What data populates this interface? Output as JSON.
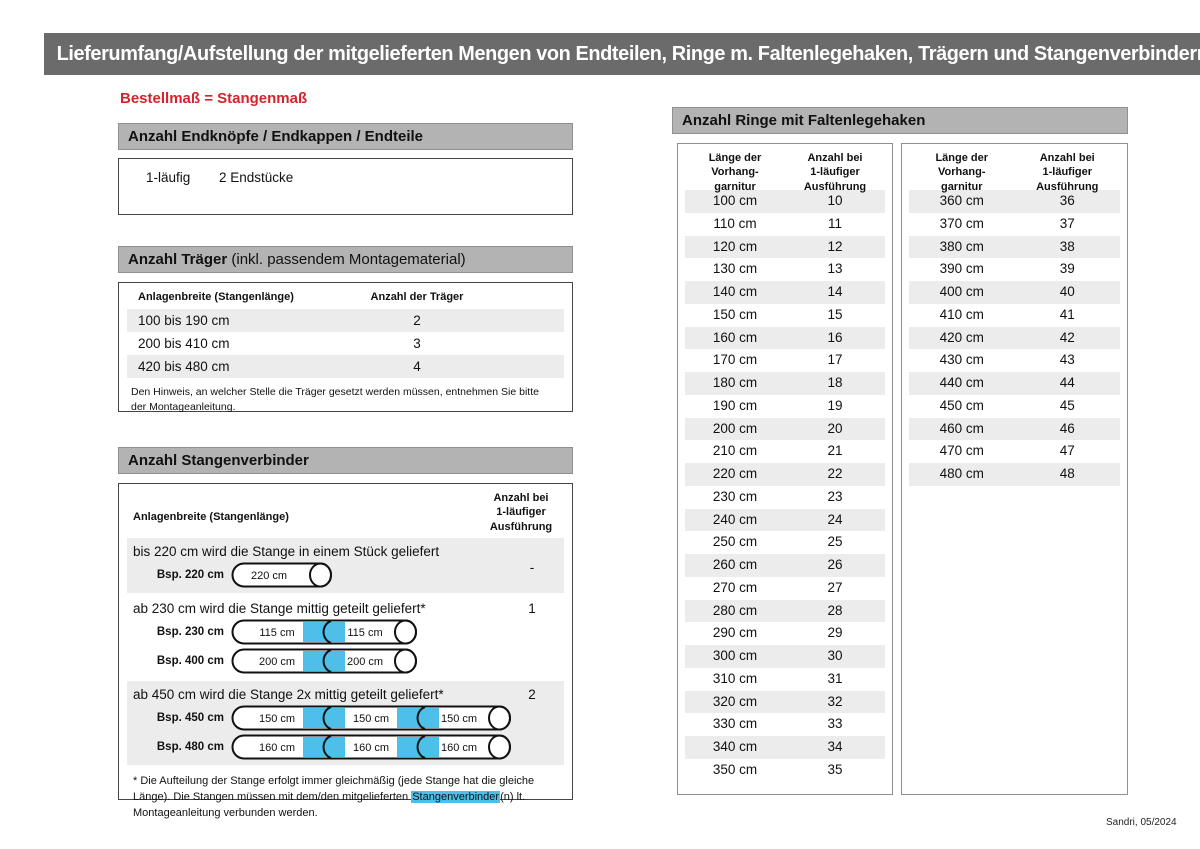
{
  "page": {
    "title_bar": "Lieferumfang/Aufstellung der mitgelieferten Mengen von Endteilen, Ringe m. Faltenlegehaken, Trägern und Stangenverbindern:",
    "subtitle": "Bestellmaß = Stangenmaß",
    "footer": "Sandri, 05/2024"
  },
  "colors": {
    "title_bar_gray": "#6b6b6b",
    "section_header_gray": "#b3b3b3",
    "row_stripe_gray": "#ececec",
    "accent_red": "#d6232b",
    "connector_blue": "#4dbfe9"
  },
  "endteile": {
    "header": "Anzahl Endknöpfe / Endkappen / Endteile",
    "row": {
      "type": "1-läufig",
      "value": "2 Endstücke"
    }
  },
  "traeger": {
    "header_bold": "Anzahl Träger",
    "header_rest": " (inkl. passendem Montagematerial)",
    "col1": "Anlagenbreite (Stangenlänge)",
    "col2": "Anzahl der Träger",
    "rows": [
      [
        "100 bis 190 cm",
        "2"
      ],
      [
        "200 bis 410 cm",
        "3"
      ],
      [
        "420 bis 480 cm",
        "4"
      ]
    ],
    "note": "Den Hinweis, an welcher Stelle die Träger gesetzt werden müssen, entnehmen Sie bitte der Montageanleitung."
  },
  "verbinder": {
    "header": "Anzahl Stangenverbinder",
    "col1": "Anlagenbreite (Stangenlänge)",
    "col2": "Anzahl bei 1-läufiger Ausführung",
    "groups": [
      {
        "text": "bis 220 cm wird die Stange in einem Stück geliefert",
        "value": "-",
        "rods": [
          {
            "label": "Bsp. 220 cm",
            "sections": [
              "220 cm"
            ]
          }
        ]
      },
      {
        "text": "ab 230 cm wird die Stange mittig geteilt geliefert*",
        "value": "1",
        "rods": [
          {
            "label": "Bsp. 230 cm",
            "sections": [
              "115 cm",
              "115 cm"
            ]
          },
          {
            "label": "Bsp. 400 cm",
            "sections": [
              "200 cm",
              "200 cm"
            ]
          }
        ]
      },
      {
        "text": "ab 450 cm wird die Stange 2x mittig geteilt geliefert*",
        "value": "2",
        "rods": [
          {
            "label": "Bsp. 450 cm",
            "sections": [
              "150 cm",
              "150 cm",
              "150 cm"
            ]
          },
          {
            "label": "Bsp. 480 cm",
            "sections": [
              "160 cm",
              "160 cm",
              "160 cm"
            ]
          }
        ]
      }
    ],
    "footnote_pre": "* Die Aufteilung der Stange erfolgt immer gleichmäßig (jede Stange hat die gleiche Länge). Die Stangen müssen mit dem/den mitgelieferten ",
    "footnote_highlight": "Stangenverbinder",
    "footnote_post": "(n) lt. Montageanleitung verbunden werden."
  },
  "ringe": {
    "header": "Anzahl Ringe mit Faltenlegehaken",
    "col1": "Länge der Vorhang- garnitur",
    "col2": "Anzahl bei 1-läufiger Ausführung",
    "col1_lines": [
      "Länge der",
      "Vorhang-",
      "garnitur"
    ],
    "col2_lines": [
      "Anzahl bei",
      "1-läufiger",
      "Ausführung"
    ],
    "table_left": [
      [
        "100 cm",
        "10"
      ],
      [
        "110 cm",
        "11"
      ],
      [
        "120 cm",
        "12"
      ],
      [
        "130 cm",
        "13"
      ],
      [
        "140 cm",
        "14"
      ],
      [
        "150 cm",
        "15"
      ],
      [
        "160 cm",
        "16"
      ],
      [
        "170 cm",
        "17"
      ],
      [
        "180 cm",
        "18"
      ],
      [
        "190 cm",
        "19"
      ],
      [
        "200 cm",
        "20"
      ],
      [
        "210 cm",
        "21"
      ],
      [
        "220 cm",
        "22"
      ],
      [
        "230 cm",
        "23"
      ],
      [
        "240 cm",
        "24"
      ],
      [
        "250 cm",
        "25"
      ],
      [
        "260 cm",
        "26"
      ],
      [
        "270 cm",
        "27"
      ],
      [
        "280 cm",
        "28"
      ],
      [
        "290 cm",
        "29"
      ],
      [
        "300 cm",
        "30"
      ],
      [
        "310 cm",
        "31"
      ],
      [
        "320 cm",
        "32"
      ],
      [
        "330 cm",
        "33"
      ],
      [
        "340 cm",
        "34"
      ],
      [
        "350 cm",
        "35"
      ]
    ],
    "table_right": [
      [
        "360 cm",
        "36"
      ],
      [
        "370 cm",
        "37"
      ],
      [
        "380 cm",
        "38"
      ],
      [
        "390 cm",
        "39"
      ],
      [
        "400 cm",
        "40"
      ],
      [
        "410 cm",
        "41"
      ],
      [
        "420 cm",
        "42"
      ],
      [
        "430 cm",
        "43"
      ],
      [
        "440 cm",
        "44"
      ],
      [
        "450 cm",
        "45"
      ],
      [
        "460 cm",
        "46"
      ],
      [
        "470 cm",
        "47"
      ],
      [
        "480 cm",
        "48"
      ]
    ]
  }
}
